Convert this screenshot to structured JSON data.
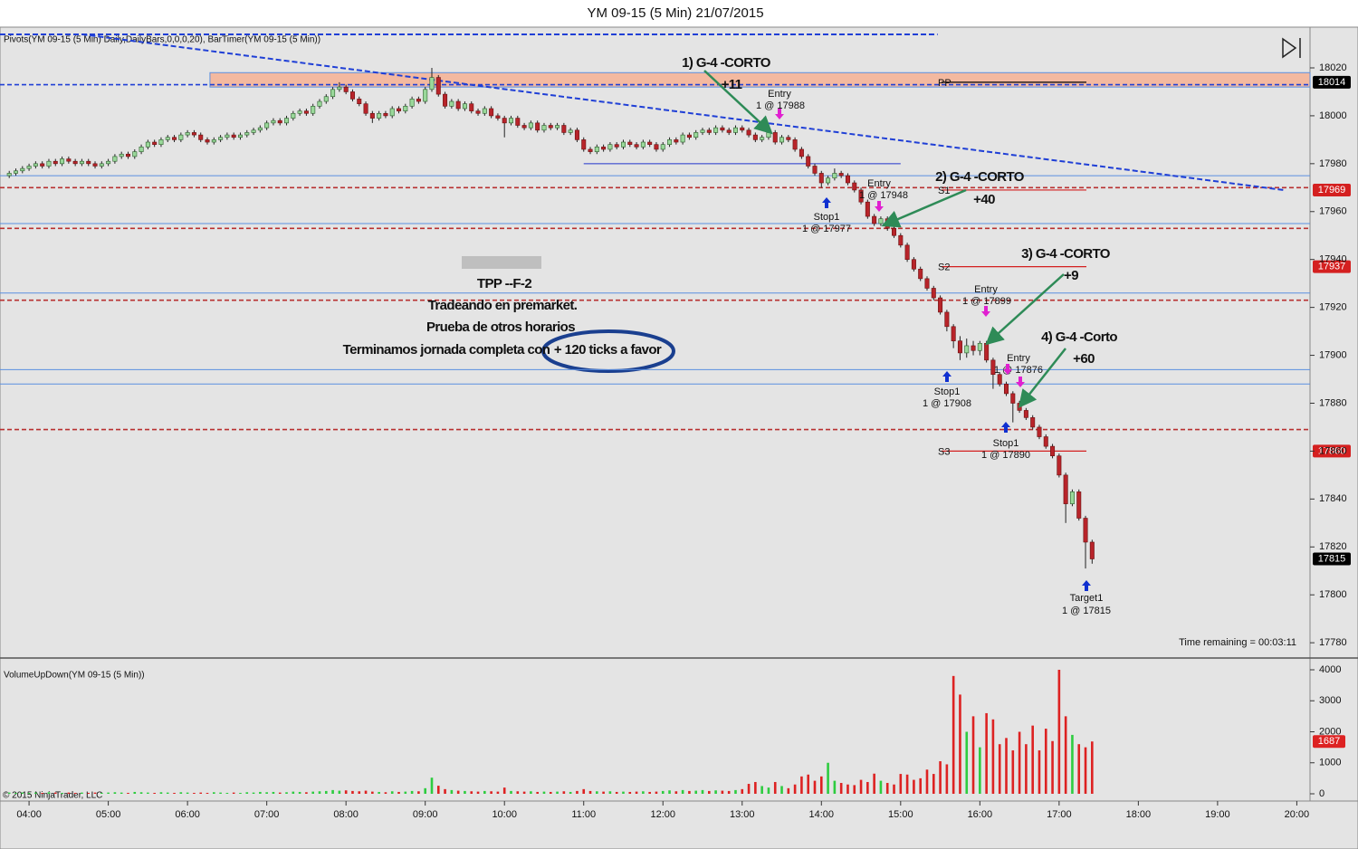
{
  "chart_data": [
    {
      "type": "candlestick",
      "title": "YM 09-15 (5 Min)  21/07/2015",
      "indicator_label": "Pivots(YM 09-15 (5 Min) Daily,DailyBars,0,0,0,20), BarTimer(YM 09-15 (5 Min))",
      "time_remaining": "Time remaining = 00:03:11",
      "up_color": "#9ad89a",
      "down_color": "#b8242a",
      "wick_color": "#222",
      "xlim": [
        "03:38",
        "20:10"
      ],
      "ylim": [
        17774,
        18037
      ],
      "yticks": [
        17780,
        17800,
        17820,
        17840,
        17860,
        17880,
        17900,
        17920,
        17940,
        17960,
        17980,
        18000,
        18020
      ],
      "x": [
        "03:45",
        "03:50",
        "03:55",
        "04:00",
        "04:05",
        "04:10",
        "04:15",
        "04:20",
        "04:25",
        "04:30",
        "04:35",
        "04:40",
        "04:45",
        "04:50",
        "04:55",
        "05:00",
        "05:05",
        "05:10",
        "05:15",
        "05:20",
        "05:25",
        "05:30",
        "05:35",
        "05:40",
        "05:45",
        "05:50",
        "05:55",
        "06:00",
        "06:05",
        "06:10",
        "06:15",
        "06:20",
        "06:25",
        "06:30",
        "06:35",
        "06:40",
        "06:45",
        "06:50",
        "06:55",
        "07:00",
        "07:05",
        "07:10",
        "07:15",
        "07:20",
        "07:25",
        "07:30",
        "07:35",
        "07:40",
        "07:45",
        "07:50",
        "07:55",
        "08:00",
        "08:05",
        "08:10",
        "08:15",
        "08:20",
        "08:25",
        "08:30",
        "08:35",
        "08:40",
        "08:45",
        "08:50",
        "08:55",
        "09:00",
        "09:05",
        "09:10",
        "09:15",
        "09:20",
        "09:25",
        "09:30",
        "09:35",
        "09:40",
        "09:45",
        "09:50",
        "09:55",
        "10:00",
        "10:05",
        "10:10",
        "10:15",
        "10:20",
        "10:25",
        "10:30",
        "10:35",
        "10:40",
        "10:45",
        "10:50",
        "10:55",
        "11:00",
        "11:05",
        "11:10",
        "11:15",
        "11:20",
        "11:25",
        "11:30",
        "11:35",
        "11:40",
        "11:45",
        "11:50",
        "11:55",
        "12:00",
        "12:05",
        "12:10",
        "12:15",
        "12:20",
        "12:25",
        "12:30",
        "12:35",
        "12:40",
        "12:45",
        "12:50",
        "12:55",
        "13:00",
        "13:05",
        "13:10",
        "13:15",
        "13:20",
        "13:25",
        "13:30",
        "13:35",
        "13:40",
        "13:45",
        "13:50",
        "13:55",
        "14:00",
        "14:05",
        "14:10",
        "14:15",
        "14:20",
        "14:25",
        "14:30",
        "14:35",
        "14:40",
        "14:45",
        "14:50",
        "14:55",
        "15:00",
        "15:05",
        "15:10",
        "15:15",
        "15:20",
        "15:25",
        "15:30",
        "15:35",
        "15:40",
        "15:45",
        "15:50",
        "15:55",
        "16:00",
        "16:05",
        "16:10",
        "16:15",
        "16:20",
        "16:25",
        "16:30",
        "16:35",
        "16:40",
        "16:45",
        "16:50",
        "16:55",
        "17:00",
        "17:05",
        "17:10",
        "17:15",
        "17:20",
        "17:25"
      ],
      "open": [
        17975,
        17976,
        17977,
        17978,
        17979,
        17980,
        17979,
        17981,
        17980,
        17982,
        17981,
        17980,
        17981,
        17980,
        17979,
        17980,
        17981,
        17983,
        17984,
        17983,
        17985,
        17987,
        17989,
        17988,
        17990,
        17991,
        17990,
        17992,
        17993,
        17992,
        17990,
        17989,
        17990,
        17991,
        17992,
        17991,
        17992,
        17993,
        17994,
        17995,
        17997,
        17998,
        17997,
        17999,
        18001,
        18002,
        18001,
        18004,
        18006,
        18008,
        18011,
        18012,
        18010,
        18007,
        18005,
        18001,
        17999,
        18001,
        18000,
        18003,
        18002,
        18004,
        18007,
        18006,
        18011,
        18016,
        18009,
        18004,
        18006,
        18003,
        18005,
        18002,
        18001,
        18003,
        18000,
        17999,
        17997,
        17999,
        17996,
        17995,
        17997,
        17994,
        17996,
        17995,
        17996,
        17993,
        17994,
        17990,
        17986,
        17985,
        17987,
        17986,
        17988,
        17987,
        17989,
        17988,
        17987,
        17989,
        17988,
        17986,
        17988,
        17990,
        17989,
        17992,
        17991,
        17993,
        17994,
        17993,
        17995,
        17994,
        17993,
        17995,
        17994,
        17992,
        17990,
        17991,
        17993,
        17989,
        17991,
        17990,
        17986,
        17983,
        17979,
        17976,
        17972,
        17974,
        17976,
        17975,
        17972,
        17969,
        17964,
        17958,
        17955,
        17957,
        17953,
        17950,
        17946,
        17940,
        17936,
        17932,
        17928,
        17924,
        17918,
        17912,
        17906,
        17901,
        17904,
        17902,
        17905,
        17898,
        17892,
        17888,
        17884,
        17880,
        17877,
        17874,
        17870,
        17866,
        17862,
        17858,
        17850,
        17838,
        17843,
        17832,
        17822
      ],
      "high": [
        17977,
        17978,
        17979,
        17980,
        17981,
        17981,
        17982,
        17982,
        17983,
        17983,
        17982,
        17982,
        17982,
        17981,
        17981,
        17982,
        17984,
        17985,
        17985,
        17986,
        17988,
        17990,
        17990,
        17991,
        17992,
        17992,
        17993,
        17994,
        17994,
        17993,
        17991,
        17991,
        17992,
        17993,
        17993,
        17993,
        17994,
        17995,
        17996,
        17998,
        17999,
        17999,
        18000,
        18002,
        18003,
        18003,
        18005,
        18007,
        18009,
        18012,
        18014,
        18013,
        18011,
        18008,
        18006,
        18002,
        18002,
        18002,
        18004,
        18004,
        18005,
        18008,
        18008,
        18012,
        18020,
        18017,
        18010,
        18007,
        18007,
        18006,
        18006,
        18003,
        18004,
        18004,
        18001,
        18000,
        18000,
        18000,
        17997,
        17998,
        17998,
        17997,
        17997,
        17997,
        17997,
        17995,
        17995,
        17991,
        17987,
        17988,
        17988,
        17989,
        17989,
        17990,
        17990,
        17989,
        17990,
        17990,
        17989,
        17989,
        17991,
        17991,
        17993,
        17993,
        17994,
        17995,
        17995,
        17996,
        17996,
        17995,
        17996,
        17996,
        17995,
        17993,
        17992,
        17994,
        17994,
        17992,
        17992,
        17991,
        17987,
        17984,
        17980,
        17977,
        17975,
        17978,
        17977,
        17976,
        17973,
        17970,
        17965,
        17959,
        17958,
        17958,
        17954,
        17951,
        17947,
        17941,
        17937,
        17933,
        17929,
        17925,
        17919,
        17913,
        17908,
        17907,
        17906,
        17906,
        17906,
        17899,
        17893,
        17889,
        17885,
        17881,
        17878,
        17875,
        17871,
        17867,
        17863,
        17859,
        17851,
        17844,
        17844,
        17833,
        17823
      ],
      "low": [
        17974,
        17975,
        17976,
        17977,
        17978,
        17978,
        17978,
        17979,
        17979,
        17980,
        17979,
        17979,
        17979,
        17978,
        17978,
        17979,
        17980,
        17982,
        17982,
        17982,
        17984,
        17986,
        17987,
        17987,
        17989,
        17989,
        17989,
        17991,
        17991,
        17989,
        17988,
        17988,
        17989,
        17990,
        17990,
        17990,
        17991,
        17992,
        17993,
        17994,
        17996,
        17996,
        17996,
        17998,
        18000,
        18000,
        18000,
        18003,
        18005,
        18007,
        18010,
        18009,
        18006,
        18004,
        18000,
        17997,
        17998,
        17999,
        17999,
        18001,
        18001,
        18003,
        18005,
        18005,
        18010,
        18008,
        18003,
        18003,
        18002,
        18002,
        18001,
        18000,
        18000,
        17999,
        17998,
        17991,
        17996,
        17995,
        17994,
        17994,
        17993,
        17993,
        17994,
        17994,
        17992,
        17992,
        17989,
        17985,
        17984,
        17984,
        17985,
        17985,
        17986,
        17986,
        17987,
        17986,
        17986,
        17987,
        17985,
        17985,
        17987,
        17988,
        17988,
        17990,
        17990,
        17992,
        17992,
        17992,
        17993,
        17992,
        17992,
        17993,
        17991,
        17989,
        17989,
        17990,
        17988,
        17988,
        17989,
        17985,
        17982,
        17978,
        17975,
        17970,
        17971,
        17973,
        17974,
        17971,
        17968,
        17963,
        17957,
        17954,
        17954,
        17952,
        17949,
        17945,
        17939,
        17935,
        17931,
        17927,
        17923,
        17917,
        17910,
        17903,
        17898,
        17899,
        17900,
        17900,
        17897,
        17886,
        17887,
        17883,
        17872,
        17876,
        17873,
        17869,
        17865,
        17861,
        17857,
        17849,
        17830,
        17837,
        17831,
        17811,
        17813
      ],
      "close": [
        17976,
        17977,
        17978,
        17979,
        17980,
        17979,
        17981,
        17980,
        17982,
        17981,
        17980,
        17981,
        17980,
        17979,
        17980,
        17981,
        17983,
        17984,
        17983,
        17985,
        17987,
        17989,
        17988,
        17990,
        17991,
        17990,
        17992,
        17993,
        17992,
        17990,
        17989,
        17990,
        17991,
        17992,
        17991,
        17992,
        17993,
        17994,
        17995,
        17997,
        17998,
        17997,
        17999,
        18001,
        18002,
        18001,
        18004,
        18006,
        18008,
        18011,
        18012,
        18010,
        18007,
        18005,
        18001,
        17999,
        18001,
        18000,
        18003,
        18002,
        18004,
        18007,
        18006,
        18011,
        18016,
        18009,
        18004,
        18006,
        18003,
        18005,
        18002,
        18001,
        18003,
        18000,
        17999,
        17997,
        17999,
        17996,
        17995,
        17997,
        17994,
        17996,
        17995,
        17996,
        17993,
        17994,
        17990,
        17986,
        17985,
        17987,
        17986,
        17988,
        17987,
        17989,
        17988,
        17987,
        17989,
        17988,
        17986,
        17988,
        17990,
        17989,
        17992,
        17991,
        17993,
        17994,
        17993,
        17995,
        17994,
        17993,
        17995,
        17994,
        17992,
        17990,
        17991,
        17993,
        17989,
        17991,
        17990,
        17986,
        17983,
        17979,
        17976,
        17972,
        17974,
        17976,
        17975,
        17972,
        17969,
        17964,
        17958,
        17955,
        17957,
        17953,
        17950,
        17946,
        17940,
        17936,
        17932,
        17928,
        17924,
        17918,
        17912,
        17906,
        17901,
        17904,
        17902,
        17905,
        17898,
        17892,
        17888,
        17884,
        17880,
        17877,
        17874,
        17870,
        17866,
        17862,
        17858,
        17850,
        17838,
        17843,
        17832,
        17822,
        17815
      ],
      "levels": [
        {
          "name": "PP",
          "value": 18014,
          "color": "#000000"
        },
        {
          "name": "S1",
          "value": 17969,
          "color": "#d42020"
        },
        {
          "name": "S2",
          "value": 17937,
          "color": "#d42020"
        },
        {
          "name": "S3",
          "value": 17860,
          "color": "#d42020"
        }
      ],
      "lines": [
        {
          "value": 18013,
          "color": "#1f3fd6",
          "dash": true
        },
        {
          "value": 17970,
          "color": "#b83030",
          "dash": true
        },
        {
          "value": 17953,
          "color": "#b83030",
          "dash": true
        },
        {
          "value": 17923,
          "color": "#b83030",
          "dash": true
        },
        {
          "value": 17869,
          "color": "#b83030",
          "dash": true
        },
        {
          "value": 17975,
          "color": "#5a8fe0",
          "dash": false
        },
        {
          "value": 17955,
          "color": "#5a8fe0",
          "dash": false
        },
        {
          "value": 17926,
          "color": "#5a8fe0",
          "dash": false
        },
        {
          "value": 17894,
          "color": "#5a8fe0",
          "dash": false
        },
        {
          "value": 17888,
          "color": "#5a8fe0",
          "dash": false
        }
      ],
      "zones": [
        {
          "top": 18018,
          "bottom": 18012,
          "from": "06:17",
          "to": "20:10",
          "color": "#f3b9a0"
        }
      ],
      "trendlines": [
        {
          "x": [
            "04:40",
            "19:50"
          ],
          "values": [
            18034,
            17969
          ],
          "color": "#1f3fd6"
        },
        {
          "x": [
            "03:38",
            "15:28"
          ],
          "values": [
            18034,
            18034
          ],
          "color": "#1f3fd6"
        },
        {
          "x": [
            "11:00",
            "15:00"
          ],
          "values": [
            17980,
            17980
          ],
          "color": "#2233cc"
        }
      ],
      "annotations": [
        "1) G-4  -CORTO",
        "+11",
        "Entry",
        "1 @ 17988",
        "2) G-4 -CORTO",
        "+40",
        "Entry",
        "1 @ 17948",
        "Stop1",
        "1 @ 17977",
        "3) G-4 -CORTO",
        "+9",
        "Entry",
        "1 @ 17899",
        "4) G-4 -Corto",
        "+60",
        "Entry",
        "1 @ 17876",
        "Stop1",
        "1 @ 17908",
        "Stop1",
        "1 @ 17890",
        "Target1",
        "1 @ 17815",
        "TPP --F-2",
        "Tradeando en premarket.",
        "Prueba de otros horarios",
        "Terminamos jornada completa con",
        "+ 120 ticks a favor"
      ]
    },
    {
      "type": "bar",
      "indicator_label": "VolumeUpDown(YM 09-15 (5 Min))",
      "copyright": "© 2015 NinjaTrader, LLC",
      "up_color": "#2ecc40",
      "down_color": "#dd2222",
      "ylim": [
        0,
        4350
      ],
      "yticks": [
        0,
        1000,
        2000,
        3000,
        4000
      ],
      "xlim": [
        "03:38",
        "20:10"
      ],
      "xticks": [
        "04:00",
        "05:00",
        "06:00",
        "07:00",
        "08:00",
        "09:00",
        "10:00",
        "11:00",
        "12:00",
        "13:00",
        "14:00",
        "15:00",
        "16:00",
        "17:00",
        "18:00",
        "19:00",
        "20:00"
      ],
      "values": [
        40,
        30,
        40,
        30,
        40,
        30,
        50,
        40,
        30,
        40,
        30,
        40,
        30,
        40,
        30,
        40,
        50,
        40,
        30,
        60,
        50,
        40,
        30,
        50,
        40,
        30,
        50,
        40,
        30,
        40,
        30,
        50,
        40,
        30,
        40,
        30,
        50,
        40,
        60,
        50,
        60,
        40,
        50,
        70,
        60,
        50,
        70,
        80,
        90,
        120,
        100,
        110,
        90,
        80,
        100,
        70,
        60,
        50,
        80,
        60,
        70,
        90,
        80,
        180,
        520,
        260,
        150,
        120,
        100,
        90,
        80,
        70,
        90,
        80,
        70,
        200,
        90,
        80,
        70,
        80,
        60,
        70,
        60,
        70,
        80,
        60,
        90,
        150,
        90,
        80,
        70,
        80,
        60,
        70,
        60,
        70,
        80,
        60,
        70,
        90,
        110,
        80,
        120,
        90,
        100,
        120,
        90,
        110,
        100,
        90,
        120,
        150,
        320,
        380,
        250,
        200,
        380,
        250,
        180,
        300,
        560,
        620,
        420,
        560,
        1000,
        420,
        350,
        300,
        280,
        450,
        380,
        650,
        420,
        350,
        300,
        640,
        620,
        450,
        500,
        780,
        640,
        1050,
        950,
        3800,
        3200,
        2000,
        2500,
        1500,
        2600,
        2400,
        1600,
        1800,
        1400,
        2000,
        1600,
        2200,
        1400,
        2100,
        1700,
        4000,
        2500,
        1900,
        1600,
        1500,
        1687
      ]
    }
  ]
}
